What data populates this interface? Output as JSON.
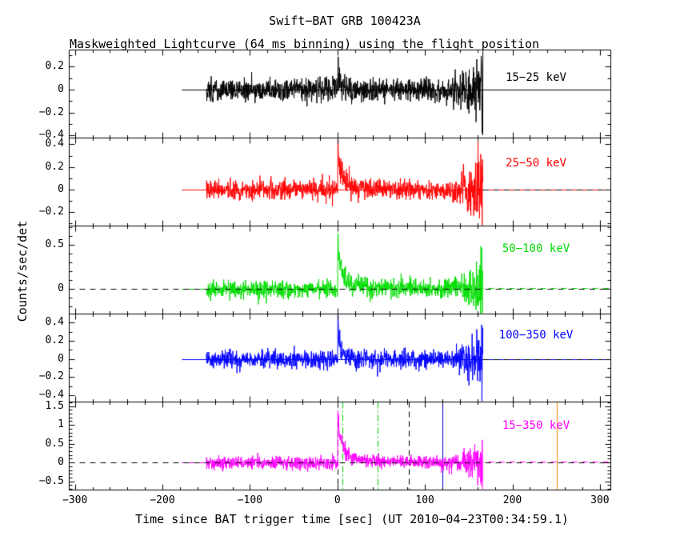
{
  "chart_data": {
    "type": "line",
    "title": "Swift−BAT GRB 100423A",
    "subtitle": "Maskweighted Lightcurve (64 ms binning) using the flight position",
    "xlabel": "Time since BAT trigger time [sec] (UT 2010−04−23T00:34:59.1)",
    "ylabel": "Counts/sec/det",
    "x_axis": {
      "range_sec": [
        -307,
        312
      ],
      "major_ticks": [
        -300,
        -200,
        -100,
        0,
        100,
        200,
        300
      ],
      "tick_labels": [
        "−300",
        "−200",
        "−100",
        "0",
        "100",
        "200",
        "300"
      ],
      "minor_tick_step": 20
    },
    "time_structure": {
      "flatline_start_sec": -178,
      "data_start_sec": -150,
      "data_end_sec": 166,
      "trigger_time_sec": 0,
      "end_flare_start_sec": 157
    },
    "panels": [
      {
        "label": "15−25 keV",
        "color": "#000000",
        "ylim": [
          -0.42,
          0.35
        ],
        "major_ticks": [
          0.2,
          0,
          -0.2,
          -0.4
        ],
        "tick_labels": [
          "0.2",
          "0",
          "−0.2",
          "−0.4"
        ],
        "minor_tick_step": 0.1,
        "zero_line": "solid",
        "noise_sigma": 0.048,
        "spike_amp": 0.2,
        "spike_decay": 5,
        "tail_amp": 0.015,
        "tail_decay": 50,
        "end_flare_amp": 0.36,
        "seed": 101
      },
      {
        "label": "25−50 keV",
        "color": "#ff0000",
        "ylim": [
          -0.32,
          0.46
        ],
        "major_ticks": [
          0.4,
          0.2,
          0,
          -0.2
        ],
        "tick_labels": [
          "0.4",
          "0.2",
          "0",
          "−0.2"
        ],
        "minor_tick_step": 0.1,
        "zero_line": "solid",
        "noise_sigma": 0.042,
        "spike_amp": 0.4,
        "spike_decay": 7,
        "tail_amp": 0.02,
        "tail_decay": 50,
        "end_flare_amp": 0.42,
        "seed": 202
      },
      {
        "label": "50−100 keV",
        "color": "#00dd00",
        "ylim": [
          -0.28,
          0.72
        ],
        "major_ticks": [
          0.5,
          0
        ],
        "tick_labels": [
          "0.5",
          "0"
        ],
        "minor_tick_step": 0.1,
        "zero_line": "dashed",
        "noise_sigma": 0.048,
        "spike_amp": 0.66,
        "spike_decay": 6,
        "tail_amp": 0.05,
        "tail_decay": 70,
        "end_flare_amp": 0.55,
        "seed": 303
      },
      {
        "label": "100−350 keV",
        "color": "#0000ff",
        "ylim": [
          -0.47,
          0.5
        ],
        "major_ticks": [
          0.4,
          0.2,
          0,
          -0.2,
          -0.4
        ],
        "tick_labels": [
          "0.4",
          "0.2",
          "0",
          "−0.2",
          "−0.4"
        ],
        "minor_tick_step": 0.1,
        "zero_line": "solid",
        "noise_sigma": 0.05,
        "spike_amp": 0.44,
        "spike_decay": 4,
        "tail_amp": 0.015,
        "tail_decay": 40,
        "end_flare_amp": 0.5,
        "seed": 404
      },
      {
        "label": "15−350 keV",
        "color": "#ff00ff",
        "ylim": [
          -0.72,
          1.62
        ],
        "major_ticks": [
          1.5,
          1,
          0.5,
          0,
          -0.5
        ],
        "tick_labels": [
          "1.5",
          "1",
          "0.5",
          "0",
          "−0.5"
        ],
        "minor_tick_step": 0.1,
        "zero_line": "dashed",
        "noise_sigma": 0.085,
        "spike_amp": 1.45,
        "spike_decay": 7,
        "tail_amp": 0.09,
        "tail_decay": 70,
        "end_flare_amp": 0.85,
        "seed": 505
      }
    ],
    "markers": [
      {
        "panel": 4,
        "t": 0,
        "color": "#000000",
        "style": "dashed"
      },
      {
        "panel": 4,
        "t": 5.5,
        "color": "#00cc00",
        "style": "dashdot"
      },
      {
        "panel": 4,
        "t": 46,
        "color": "#00cc00",
        "style": "dashdot"
      },
      {
        "panel": 4,
        "t": 82,
        "color": "#000000",
        "style": "dashed"
      },
      {
        "panel": 4,
        "t": 120,
        "color": "#0000cc",
        "style": "solid"
      },
      {
        "panel": 4,
        "t": 251,
        "color": "#ff8800",
        "style": "solid"
      }
    ]
  }
}
